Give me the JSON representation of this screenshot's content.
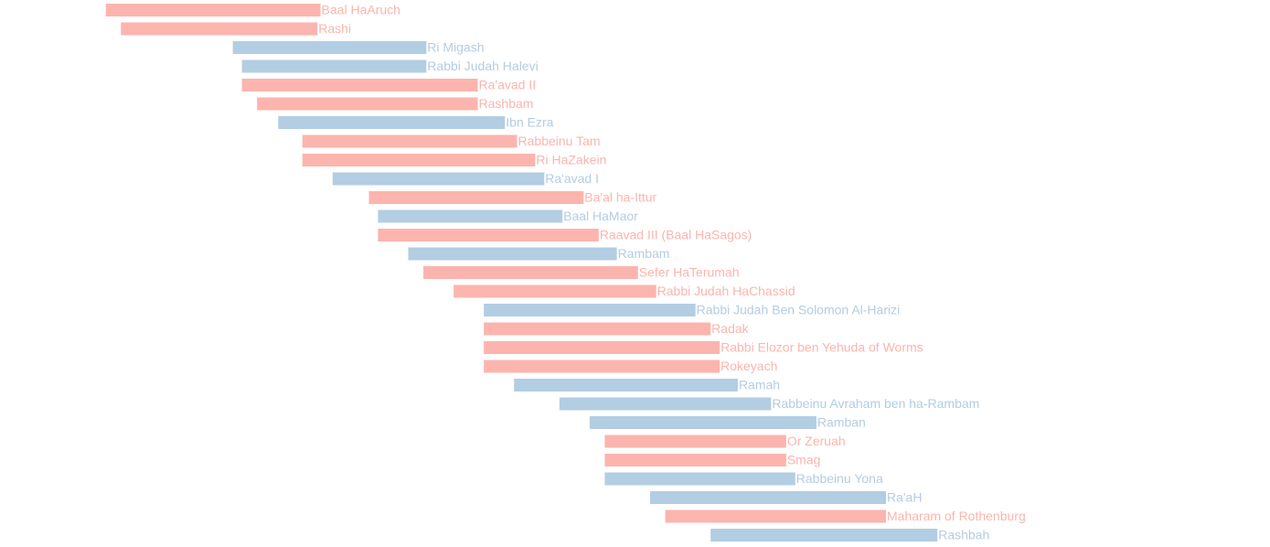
{
  "chart_data": {
    "type": "bar",
    "orientation": "horizontal-range",
    "title": "",
    "xlabel": "",
    "ylabel": "",
    "xlim": [
      1000,
      1420
    ],
    "grid": false,
    "legend": "none",
    "colors": {
      "red": "#fbb5ae",
      "blue": "#b3cde3"
    },
    "series": [
      {
        "label": "Baal HaAruch",
        "start": 1035,
        "end": 1106,
        "color": "red"
      },
      {
        "label": "Rashi",
        "start": 1040,
        "end": 1105,
        "color": "red"
      },
      {
        "label": "Ri Migash",
        "start": 1077,
        "end": 1141,
        "color": "blue"
      },
      {
        "label": "Rabbi Judah Halevi",
        "start": 1080,
        "end": 1141,
        "color": "blue"
      },
      {
        "label": "Ra'avad II",
        "start": 1080,
        "end": 1158,
        "color": "red"
      },
      {
        "label": "Rashbam",
        "start": 1085,
        "end": 1158,
        "color": "red"
      },
      {
        "label": "Ibn Ezra",
        "start": 1092,
        "end": 1167,
        "color": "blue"
      },
      {
        "label": "Rabbeinu Tam",
        "start": 1100,
        "end": 1171,
        "color": "red"
      },
      {
        "label": "Ri HaZakein",
        "start": 1100,
        "end": 1177,
        "color": "red"
      },
      {
        "label": "Ra'avad I",
        "start": 1110,
        "end": 1180,
        "color": "blue"
      },
      {
        "label": "Ba'al ha-Ittur",
        "start": 1122,
        "end": 1193,
        "color": "red"
      },
      {
        "label": "Baal HaMaor",
        "start": 1125,
        "end": 1186,
        "color": "blue"
      },
      {
        "label": "Raavad III (Baal HaSagos)",
        "start": 1125,
        "end": 1198,
        "color": "red"
      },
      {
        "label": "Rambam",
        "start": 1135,
        "end": 1204,
        "color": "blue"
      },
      {
        "label": "Sefer HaTerumah",
        "start": 1140,
        "end": 1211,
        "color": "red"
      },
      {
        "label": "Rabbi Judah HaChassid",
        "start": 1150,
        "end": 1217,
        "color": "red"
      },
      {
        "label": "Rabbi Judah Ben Solomon Al-Harizi",
        "start": 1160,
        "end": 1230,
        "color": "blue"
      },
      {
        "label": "Radak",
        "start": 1160,
        "end": 1235,
        "color": "red"
      },
      {
        "label": "Rabbi Elozor ben Yehuda of Worms",
        "start": 1160,
        "end": 1238,
        "color": "red"
      },
      {
        "label": "Rokeyach",
        "start": 1160,
        "end": 1238,
        "color": "red"
      },
      {
        "label": "Ramah",
        "start": 1170,
        "end": 1244,
        "color": "blue"
      },
      {
        "label": "Rabbeinu Avraham ben ha-Rambam",
        "start": 1185,
        "end": 1255,
        "color": "blue"
      },
      {
        "label": "Ramban",
        "start": 1195,
        "end": 1270,
        "color": "blue"
      },
      {
        "label": "Or Zeruah",
        "start": 1200,
        "end": 1260,
        "color": "red"
      },
      {
        "label": "Smag",
        "start": 1200,
        "end": 1260,
        "color": "red"
      },
      {
        "label": "Rabbeinu Yona",
        "start": 1200,
        "end": 1263,
        "color": "blue"
      },
      {
        "label": "Ra'aH",
        "start": 1215,
        "end": 1293,
        "color": "blue"
      },
      {
        "label": "Maharam of Rothenburg",
        "start": 1220,
        "end": 1293,
        "color": "red"
      },
      {
        "label": "Rashbah",
        "start": 1235,
        "end": 1310,
        "color": "blue"
      }
    ]
  }
}
